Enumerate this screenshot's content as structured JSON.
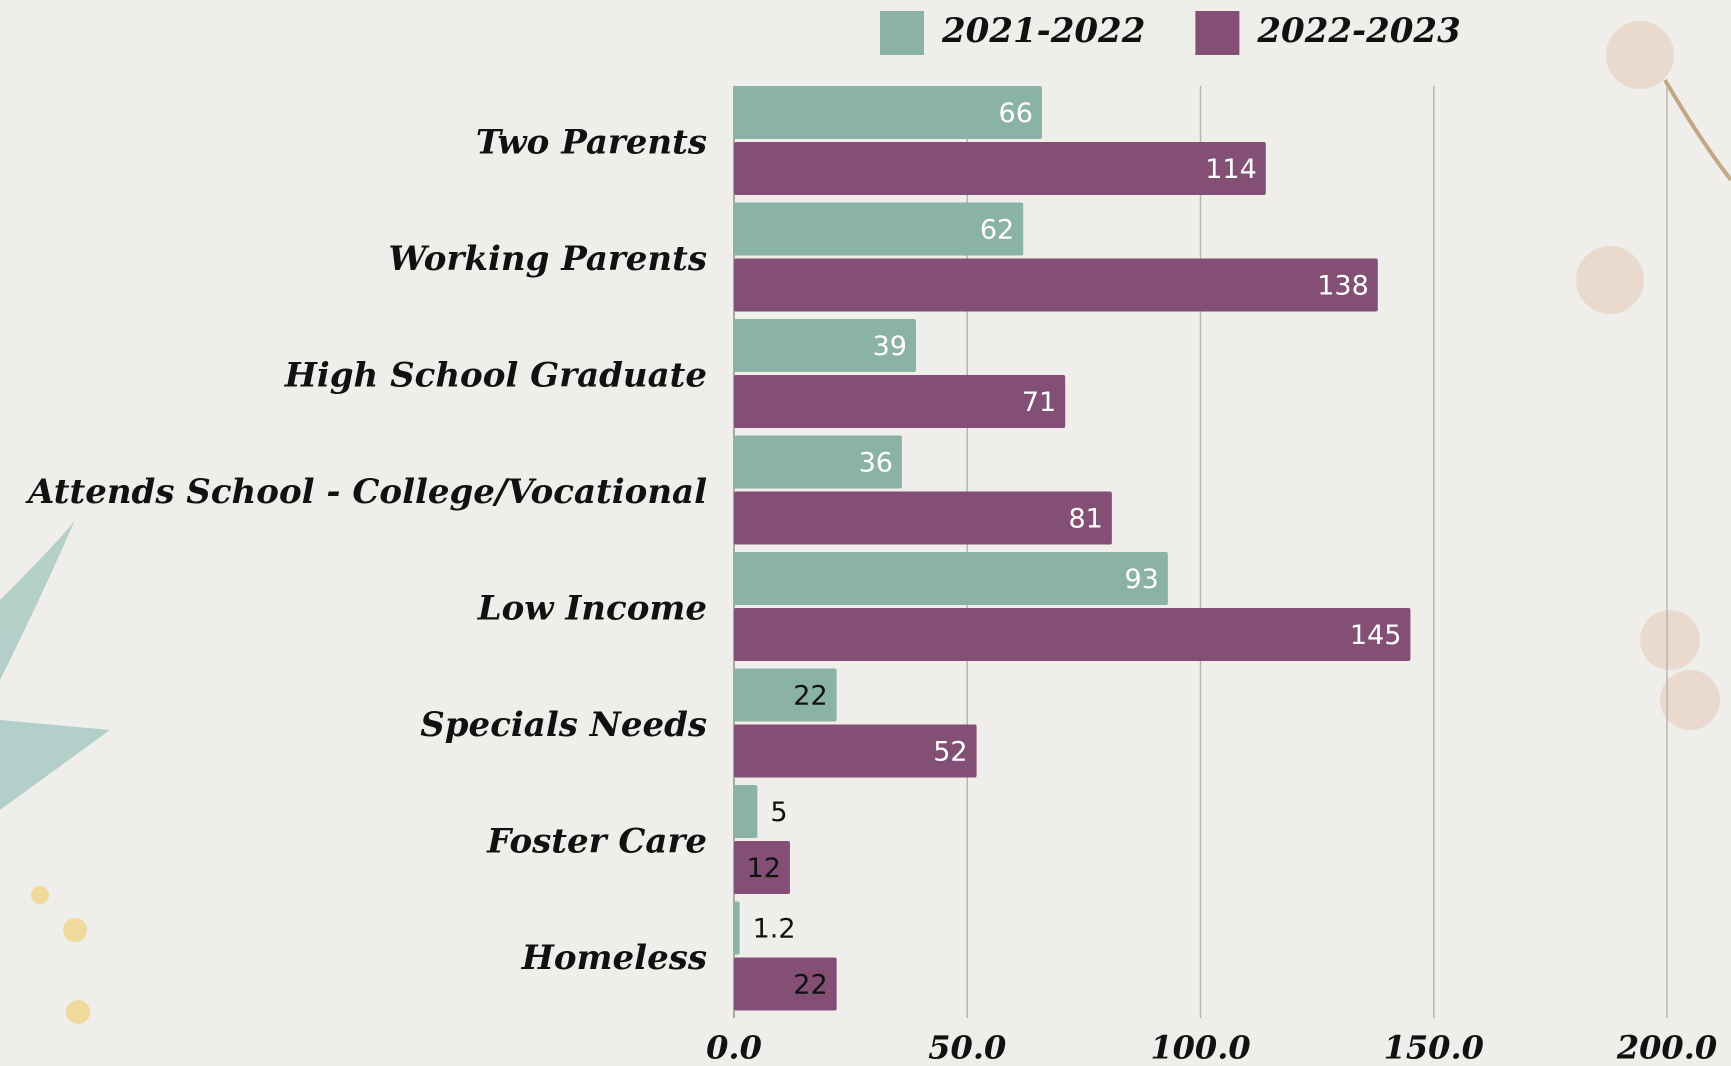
{
  "chart_data": {
    "type": "hbar",
    "categories": [
      "Two Parents",
      "Working Parents",
      "High School Graduate",
      "Attends School - College/Vocational",
      "Low Income",
      "Specials Needs",
      "Foster Care",
      "Homeless"
    ],
    "series": [
      {
        "name": "2021-2022",
        "color": "#8ab2a6",
        "values": [
          66,
          62,
          39,
          36,
          93,
          22,
          5,
          1.2
        ]
      },
      {
        "name": "2022-2023",
        "color": "#834f74",
        "values": [
          114,
          138,
          71,
          81,
          145,
          52,
          12,
          22
        ]
      }
    ],
    "xlim": [
      0,
      200
    ],
    "xticks": [
      {
        "value": 0,
        "label": "0.0"
      },
      {
        "value": 50,
        "label": "50.0"
      },
      {
        "value": 100,
        "label": "100.0"
      },
      {
        "value": 150,
        "label": "150.0"
      },
      {
        "value": 200,
        "label": "200.0"
      }
    ],
    "grid": true,
    "legend": "top"
  }
}
